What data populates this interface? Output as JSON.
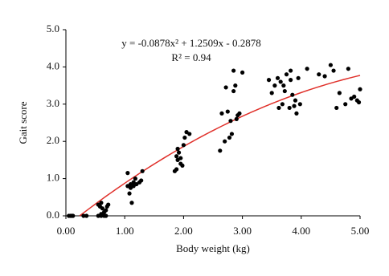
{
  "chart_data": {
    "type": "scatter",
    "x_label": "Body weight (kg)",
    "y_label": "Gait score",
    "xlim": [
      0,
      5
    ],
    "ylim": [
      0,
      5
    ],
    "xticks": [
      {
        "value": 0,
        "label": "0.00"
      },
      {
        "value": 1,
        "label": "1.00"
      },
      {
        "value": 2,
        "label": "2.00"
      },
      {
        "value": 3,
        "label": "3.00"
      },
      {
        "value": 4,
        "label": "4.00"
      },
      {
        "value": 5,
        "label": "5.00"
      }
    ],
    "yticks": [
      {
        "value": 0,
        "label": "0.0"
      },
      {
        "value": 1,
        "label": "1.0"
      },
      {
        "value": 2,
        "label": "2.0"
      },
      {
        "value": 3,
        "label": "3.0"
      },
      {
        "value": 4,
        "label": "4.0"
      },
      {
        "value": 5,
        "label": "5.0"
      }
    ],
    "color": "#000000",
    "x": [
      0.05,
      0.08,
      0.1,
      0.12,
      0.3,
      0.35,
      0.55,
      0.6,
      0.65,
      0.68,
      0.55,
      0.58,
      0.6,
      0.62,
      0.65,
      0.68,
      0.7,
      0.72,
      0.6,
      1.05,
      1.05,
      1.08,
      1.1,
      1.12,
      1.15,
      1.18,
      1.2,
      1.25,
      1.28,
      1.3,
      1.1,
      1.15,
      1.85,
      1.88,
      1.9,
      1.92,
      1.95,
      1.95,
      1.98,
      1.9,
      2.0,
      2.02,
      2.05,
      2.1,
      1.88,
      2.62,
      2.65,
      2.7,
      2.72,
      2.75,
      2.78,
      2.8,
      2.82,
      2.85,
      2.88,
      2.9,
      2.92,
      2.95,
      3.0,
      2.85,
      3.45,
      3.5,
      3.55,
      3.6,
      3.62,
      3.65,
      3.68,
      3.7,
      3.72,
      3.75,
      3.8,
      3.82,
      3.85,
      3.88,
      3.9,
      3.92,
      3.95,
      3.98,
      3.82,
      4.1,
      4.3,
      4.4,
      4.5,
      4.55,
      4.6,
      4.65,
      4.75,
      4.8,
      4.85,
      4.9,
      4.95,
      4.98,
      5.0
    ],
    "values": [
      0,
      0,
      0,
      0,
      0,
      0,
      0,
      0,
      0,
      0,
      0.3,
      0.25,
      0.35,
      0.2,
      0.1,
      0.15,
      0.25,
      0.3,
      0.05,
      1.15,
      0.8,
      0.6,
      0.85,
      0.35,
      0.9,
      1.0,
      0.85,
      0.9,
      0.95,
      1.2,
      0.75,
      0.8,
      1.2,
      1.25,
      1.8,
      1.7,
      1.55,
      1.4,
      1.35,
      1.5,
      1.9,
      2.1,
      2.25,
      2.2,
      1.6,
      1.75,
      2.75,
      2.0,
      3.45,
      2.8,
      2.1,
      2.55,
      2.2,
      3.35,
      3.5,
      2.6,
      2.7,
      2.75,
      3.85,
      3.9,
      3.65,
      3.3,
      3.5,
      3.7,
      2.9,
      3.6,
      3.0,
      3.5,
      3.35,
      3.8,
      2.9,
      3.65,
      3.25,
      2.95,
      3.1,
      2.75,
      3.7,
      3.0,
      3.9,
      3.95,
      3.8,
      3.75,
      4.05,
      3.9,
      2.9,
      3.3,
      3.0,
      3.95,
      3.15,
      3.2,
      3.1,
      3.05,
      3.4
    ],
    "trendline": {
      "equation": "y = -0.0878x² + 1.2509x - 0.2878",
      "r_squared_label": "R² = 0.94",
      "coefficients": [
        -0.0878,
        1.2509,
        -0.2878
      ],
      "color": "#e0302a"
    }
  }
}
